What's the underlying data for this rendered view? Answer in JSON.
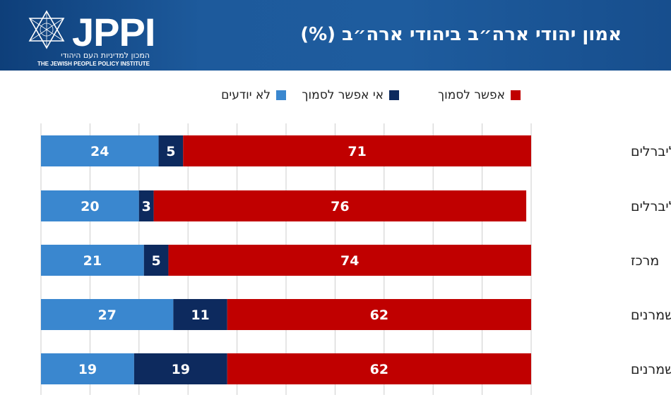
{
  "header": {
    "title": "אמון יהודי ארה״ב ביהודי ארה״ב (%)",
    "logo_text": "JPPI",
    "logo_hebrew": "המכון למדיניות העם היהודי",
    "logo_english": "THE JEWISH PEOPLE POLICY INSTITUTE"
  },
  "colors": {
    "header_bg": "#1d5a9c",
    "can_trust": "#c00000",
    "cannot_trust": "#0d2a5e",
    "dont_know": "#3a87cf",
    "grid": "#cccccc"
  },
  "chart_data": {
    "type": "bar",
    "orientation": "horizontal",
    "stacked": true,
    "title": "אמון יהודי ארה״ב ביהודי ארה״ב (%)",
    "categories": [
      "מאוד ליברלים",
      "נוטים לליברלים",
      "מרכז",
      "נוטים לשמרנים",
      "מאוד שמרנים"
    ],
    "series": [
      {
        "name": "לא יודעים",
        "values": [
          24,
          20,
          21,
          27,
          19
        ],
        "color": "#3a87cf"
      },
      {
        "name": "אי אפשר לסמוך",
        "values": [
          5,
          3,
          5,
          11,
          19
        ],
        "color": "#0d2a5e"
      },
      {
        "name": "אפשר לסמוך",
        "values": [
          71,
          76,
          74,
          62,
          62
        ],
        "color": "#c00000"
      }
    ],
    "legend_order": [
      "אפשר לסמוך",
      "אי אפשר לסמוך",
      "לא יודעים"
    ],
    "xlim": [
      0,
      100
    ],
    "grid": true,
    "legend_position": "top"
  }
}
